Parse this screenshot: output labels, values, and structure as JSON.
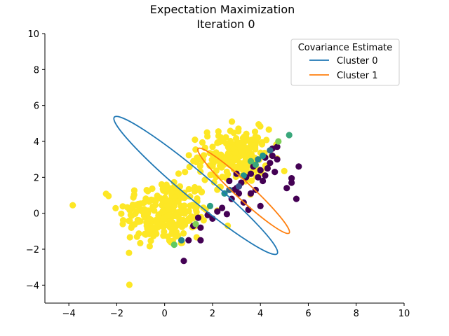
{
  "chart_data": {
    "type": "scatter",
    "title": "Expectation Maximization",
    "subtitle": "Iteration 0",
    "xlabel": "",
    "ylabel": "",
    "xlim": [
      -5,
      10
    ],
    "ylim": [
      -5,
      10
    ],
    "xticks": [
      "−4",
      "−2",
      "0",
      "2",
      "4",
      "6",
      "8",
      "10"
    ],
    "yticks": [
      "−4",
      "−2",
      "0",
      "2",
      "4",
      "6",
      "8",
      "10"
    ],
    "xtick_values": [
      -4,
      -2,
      0,
      2,
      4,
      6,
      8,
      10
    ],
    "ytick_values": [
      -4,
      -2,
      0,
      2,
      4,
      6,
      8,
      10
    ],
    "grid": false,
    "colormap": "viridis",
    "legend": {
      "title": "Covariance Estimate",
      "placement": "top-right",
      "entries": [
        {
          "name": "Cluster 0",
          "color": "#1f77b4"
        },
        {
          "name": "Cluster 1",
          "color": "#ff7f0e"
        }
      ]
    },
    "ellipses": [
      {
        "name": "Cluster 0",
        "color": "#1f77b4",
        "center": [
          1.3,
          1.55
        ],
        "corner_a": [
          -2.1,
          5.35
        ],
        "corner_b": [
          4.7,
          -2.25
        ],
        "minor_half": 0.55
      },
      {
        "name": "Cluster 1",
        "color": "#ff7f0e",
        "center": [
          3.3,
          1.6
        ],
        "corner_a": [
          1.4,
          3.6
        ],
        "corner_b": [
          5.2,
          -1.1
        ],
        "minor_half": 0.35
      }
    ],
    "cluster_blobs": [
      {
        "label": "yellow cluster (lower-left)",
        "center": [
          0,
          0
        ],
        "spread": [
          0.95,
          0.95
        ],
        "count": 240,
        "color_value": 1.0
      },
      {
        "label": "yellow cluster (upper)",
        "center": [
          2.9,
          3.2
        ],
        "spread": [
          0.75,
          0.75
        ],
        "count": 200,
        "color_value": 1.0
      }
    ],
    "purple_points": [
      [
        0.8,
        -2.65
      ],
      [
        1.0,
        -1.5
      ],
      [
        1.5,
        -1.5
      ],
      [
        1.5,
        -0.8
      ],
      [
        1.2,
        -0.7
      ],
      [
        1.4,
        -0.25
      ],
      [
        1.8,
        -0.1
      ],
      [
        2.0,
        -0.3
      ],
      [
        2.2,
        0.1
      ],
      [
        2.4,
        0.3
      ],
      [
        2.6,
        -0.05
      ],
      [
        2.8,
        0.8
      ],
      [
        3.0,
        1.4
      ],
      [
        3.2,
        1.7
      ],
      [
        3.1,
        1.1
      ],
      [
        3.3,
        0.6
      ],
      [
        3.5,
        0.2
      ],
      [
        3.6,
        1.1
      ],
      [
        3.8,
        1.3
      ],
      [
        4.0,
        0.4
      ],
      [
        4.1,
        1.8
      ],
      [
        4.2,
        2.1
      ],
      [
        4.3,
        2.5
      ],
      [
        4.4,
        2.8
      ],
      [
        4.5,
        3.2
      ],
      [
        4.6,
        2.3
      ],
      [
        4.7,
        3.0
      ],
      [
        4.7,
        3.7
      ],
      [
        4.2,
        3.1
      ],
      [
        3.9,
        2.0
      ],
      [
        3.6,
        2.2
      ],
      [
        3.4,
        2.0
      ],
      [
        3.0,
        2.2
      ],
      [
        2.7,
        1.8
      ],
      [
        2.9,
        1.3
      ],
      [
        5.1,
        1.4
      ],
      [
        5.3,
        1.7
      ],
      [
        5.3,
        1.95
      ],
      [
        5.5,
        0.8
      ],
      [
        5.6,
        2.6
      ],
      [
        4.0,
        2.4
      ],
      [
        4.5,
        3.6
      ],
      [
        3.7,
        2.6
      ]
    ],
    "transition_points": [
      {
        "x": 0.7,
        "y": -1.5,
        "v": 0.45
      },
      {
        "x": 0.4,
        "y": -1.75,
        "v": 0.75
      },
      {
        "x": 1.3,
        "y": -0.6,
        "v": 0.8
      },
      {
        "x": 1.9,
        "y": 0.4,
        "v": 0.55
      },
      {
        "x": 2.5,
        "y": 1.1,
        "v": 0.5
      },
      {
        "x": 2.7,
        "y": 1.3,
        "v": 0.35
      },
      {
        "x": 3.1,
        "y": 1.5,
        "v": 0.25
      },
      {
        "x": 3.3,
        "y": 2.1,
        "v": 0.5
      },
      {
        "x": 3.8,
        "y": 2.7,
        "v": 0.6
      },
      {
        "x": 3.9,
        "y": 3.0,
        "v": 0.45
      },
      {
        "x": 4.1,
        "y": 3.2,
        "v": 0.5
      },
      {
        "x": 4.4,
        "y": 3.5,
        "v": 0.35
      },
      {
        "x": 3.6,
        "y": 2.9,
        "v": 0.7
      },
      {
        "x": 5.2,
        "y": 4.35,
        "v": 0.6
      },
      {
        "x": 4.75,
        "y": 4.0,
        "v": 0.8
      }
    ]
  }
}
